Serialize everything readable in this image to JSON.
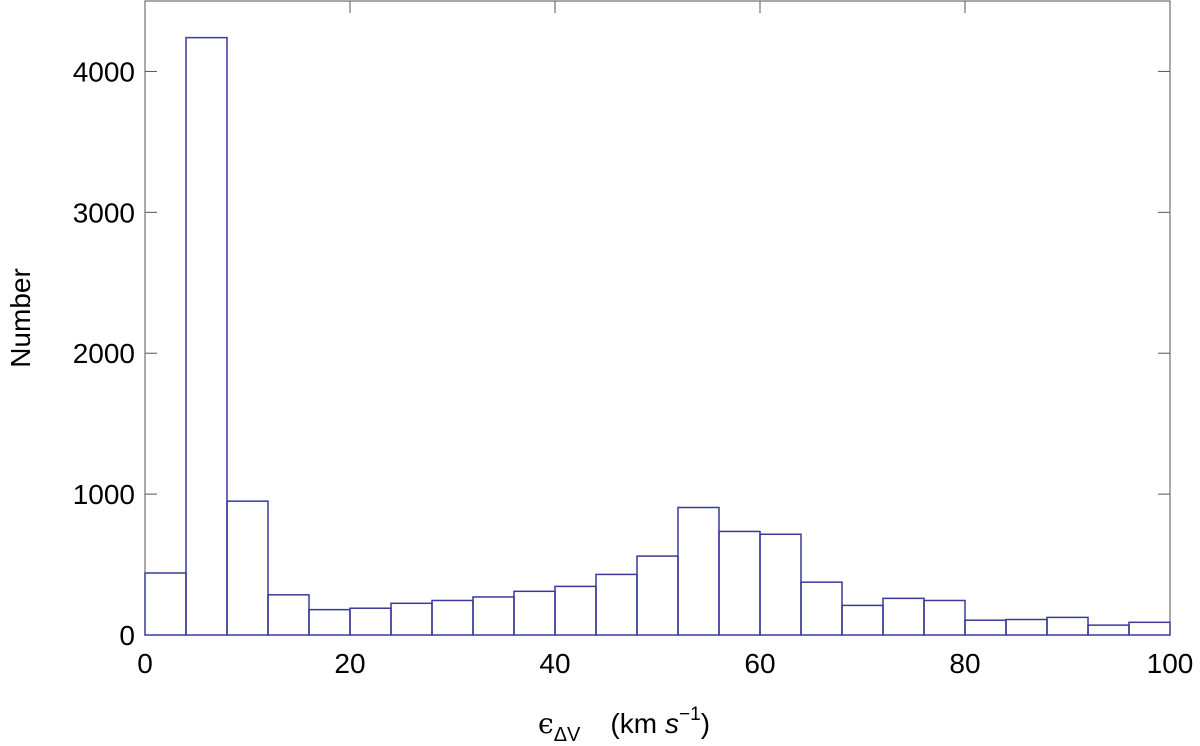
{
  "chart_data": {
    "type": "histogram",
    "y_label": "Number",
    "x_label": {
      "symbol": "ϵ",
      "subscript": "ΔV",
      "open": "(km",
      "unit": "s",
      "power": "−1",
      "close": ")"
    },
    "bins": [
      0,
      4,
      8,
      12,
      16,
      20,
      24,
      28,
      32,
      36,
      40,
      44,
      48,
      52,
      56,
      60,
      64,
      68,
      72,
      76,
      80,
      84,
      88,
      92,
      96,
      100
    ],
    "counts": [
      440,
      4240,
      950,
      285,
      180,
      190,
      225,
      245,
      270,
      310,
      345,
      430,
      560,
      905,
      735,
      715,
      375,
      210,
      260,
      245,
      105,
      110,
      125,
      70,
      90
    ],
    "color": "#3a3a9a",
    "xlim": [
      0,
      100
    ],
    "xticks": [
      0,
      20,
      40,
      60,
      80,
      100
    ],
    "ylim": [
      0,
      4500
    ],
    "yticks": [
      0,
      1000,
      2000,
      3000,
      4000
    ]
  }
}
